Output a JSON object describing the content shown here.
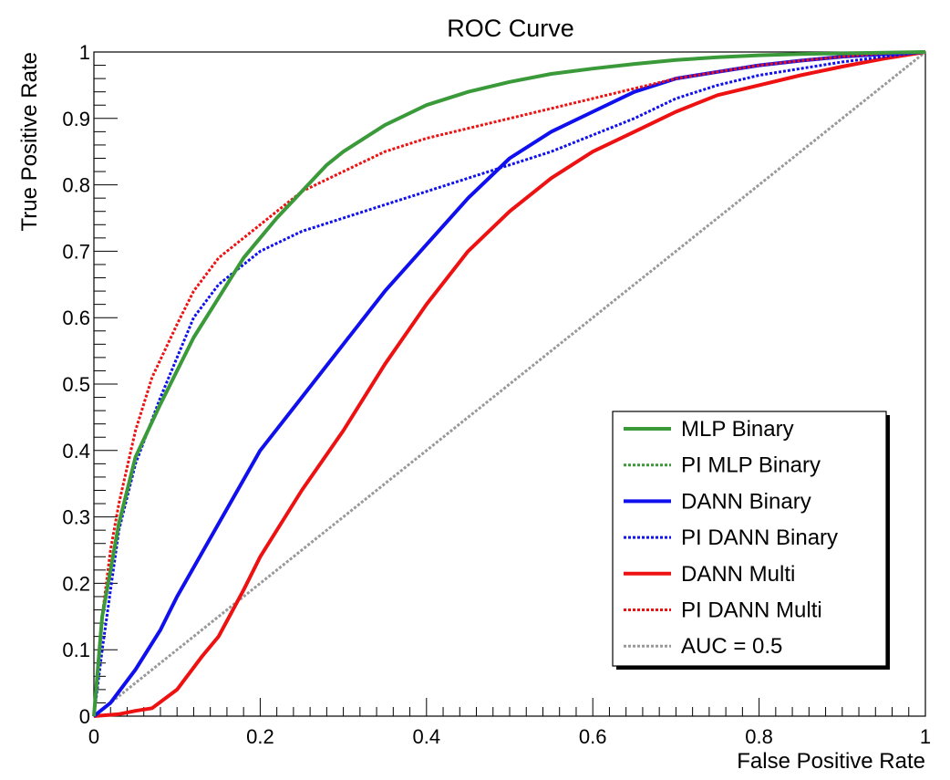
{
  "chart_data": {
    "type": "line",
    "title": "ROC Curve",
    "xlabel": "False Positive Rate",
    "ylabel": "True Positive Rate",
    "xlim": [
      0,
      1
    ],
    "ylim": [
      0,
      1
    ],
    "x_ticks": [
      "0",
      "0.2",
      "0.4",
      "0.6",
      "0.8",
      "1"
    ],
    "y_ticks": [
      "0",
      "0.1",
      "0.2",
      "0.3",
      "0.4",
      "0.5",
      "0.6",
      "0.7",
      "0.8",
      "0.9",
      "1"
    ],
    "grid": false,
    "legend_position": "bottom-right",
    "series": [
      {
        "name": "MLP Binary",
        "color": "#3a9a3a",
        "style": "solid",
        "x": [
          0,
          0.01,
          0.03,
          0.05,
          0.08,
          0.1,
          0.12,
          0.15,
          0.18,
          0.2,
          0.22,
          0.25,
          0.28,
          0.3,
          0.35,
          0.4,
          0.45,
          0.5,
          0.55,
          0.6,
          0.65,
          0.7,
          0.75,
          0.8,
          0.85,
          0.9,
          0.95,
          1.0
        ],
        "y": [
          0,
          0.15,
          0.29,
          0.39,
          0.47,
          0.52,
          0.57,
          0.63,
          0.69,
          0.72,
          0.75,
          0.79,
          0.83,
          0.85,
          0.89,
          0.92,
          0.94,
          0.955,
          0.967,
          0.975,
          0.982,
          0.988,
          0.992,
          0.995,
          0.997,
          0.998,
          0.999,
          1.0
        ]
      },
      {
        "name": "PI MLP Binary",
        "color": "#3a9a3a",
        "style": "dotted",
        "x": [
          0,
          0.01,
          0.03,
          0.05,
          0.08,
          0.1,
          0.12,
          0.15,
          0.18,
          0.2,
          0.22,
          0.25,
          0.28,
          0.3,
          0.35,
          0.4,
          0.45,
          0.5,
          0.55,
          0.6,
          0.65,
          0.7,
          0.75,
          0.8,
          0.85,
          0.9,
          0.95,
          1.0
        ],
        "y": [
          0,
          0.15,
          0.29,
          0.39,
          0.47,
          0.52,
          0.57,
          0.63,
          0.69,
          0.72,
          0.75,
          0.79,
          0.83,
          0.85,
          0.89,
          0.92,
          0.94,
          0.955,
          0.967,
          0.975,
          0.982,
          0.988,
          0.992,
          0.995,
          0.997,
          0.998,
          0.999,
          1.0
        ]
      },
      {
        "name": "DANN Binary",
        "color": "#1010ee",
        "style": "solid",
        "x": [
          0,
          0.02,
          0.05,
          0.08,
          0.1,
          0.15,
          0.2,
          0.25,
          0.3,
          0.35,
          0.4,
          0.45,
          0.5,
          0.55,
          0.6,
          0.65,
          0.7,
          0.75,
          0.8,
          0.85,
          0.9,
          0.95,
          1.0
        ],
        "y": [
          0,
          0.02,
          0.07,
          0.13,
          0.18,
          0.29,
          0.4,
          0.48,
          0.56,
          0.64,
          0.71,
          0.78,
          0.84,
          0.88,
          0.91,
          0.94,
          0.96,
          0.97,
          0.98,
          0.987,
          0.993,
          0.997,
          1.0
        ]
      },
      {
        "name": "PI DANN Binary",
        "color": "#1010ee",
        "style": "dotted",
        "x": [
          0,
          0.01,
          0.03,
          0.05,
          0.08,
          0.1,
          0.12,
          0.15,
          0.2,
          0.25,
          0.3,
          0.35,
          0.4,
          0.45,
          0.5,
          0.55,
          0.6,
          0.65,
          0.7,
          0.75,
          0.8,
          0.85,
          0.9,
          0.95,
          1.0
        ],
        "y": [
          0,
          0.1,
          0.28,
          0.38,
          0.48,
          0.54,
          0.6,
          0.65,
          0.7,
          0.73,
          0.75,
          0.77,
          0.79,
          0.81,
          0.83,
          0.85,
          0.875,
          0.9,
          0.93,
          0.95,
          0.965,
          0.975,
          0.985,
          0.993,
          1.0
        ]
      },
      {
        "name": "DANN Multi",
        "color": "#ee1111",
        "style": "solid",
        "x": [
          0,
          0.03,
          0.05,
          0.07,
          0.1,
          0.13,
          0.15,
          0.18,
          0.2,
          0.25,
          0.3,
          0.35,
          0.4,
          0.45,
          0.5,
          0.55,
          0.6,
          0.65,
          0.7,
          0.75,
          0.8,
          0.85,
          0.9,
          0.95,
          1.0
        ],
        "y": [
          0,
          0.003,
          0.008,
          0.012,
          0.04,
          0.09,
          0.12,
          0.19,
          0.24,
          0.34,
          0.43,
          0.53,
          0.62,
          0.7,
          0.76,
          0.81,
          0.85,
          0.88,
          0.91,
          0.935,
          0.95,
          0.965,
          0.978,
          0.99,
          1.0
        ]
      },
      {
        "name": "PI DANN Multi",
        "color": "#ee1111",
        "style": "dotted",
        "x": [
          0,
          0.005,
          0.01,
          0.02,
          0.03,
          0.05,
          0.07,
          0.1,
          0.12,
          0.15,
          0.18,
          0.2,
          0.25,
          0.3,
          0.35,
          0.4,
          0.45,
          0.5,
          0.55,
          0.6,
          0.65,
          0.7,
          0.75,
          0.8,
          0.85,
          0.9,
          0.95,
          1.0
        ],
        "y": [
          0,
          0.08,
          0.15,
          0.25,
          0.32,
          0.43,
          0.51,
          0.59,
          0.64,
          0.69,
          0.72,
          0.74,
          0.79,
          0.82,
          0.85,
          0.87,
          0.885,
          0.9,
          0.915,
          0.93,
          0.945,
          0.96,
          0.97,
          0.98,
          0.987,
          0.993,
          0.998,
          1.0
        ]
      },
      {
        "name": "AUC = 0.5",
        "color": "#999999",
        "style": "dotted",
        "x": [
          0,
          1
        ],
        "y": [
          0,
          1
        ]
      }
    ]
  }
}
